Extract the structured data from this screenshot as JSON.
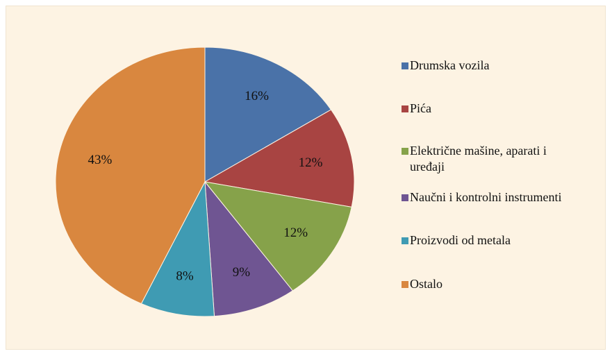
{
  "chart_data": {
    "type": "pie",
    "categories": [
      "Drumska vozila",
      "Pića",
      "Električne mašine, aparati i uređaji",
      "Naučni i kontrolni instrumenti",
      "Proizvodi od metala",
      "Ostalo"
    ],
    "values": [
      16,
      12,
      12,
      9,
      8,
      43
    ],
    "value_labels": [
      "16%",
      "12%",
      "12%",
      "9%",
      "8%",
      "43%"
    ],
    "colors": [
      "#4a72a8",
      "#a84442",
      "#86a24a",
      "#6f5592",
      "#3f9bb3",
      "#d9873f"
    ],
    "legend": "right"
  }
}
